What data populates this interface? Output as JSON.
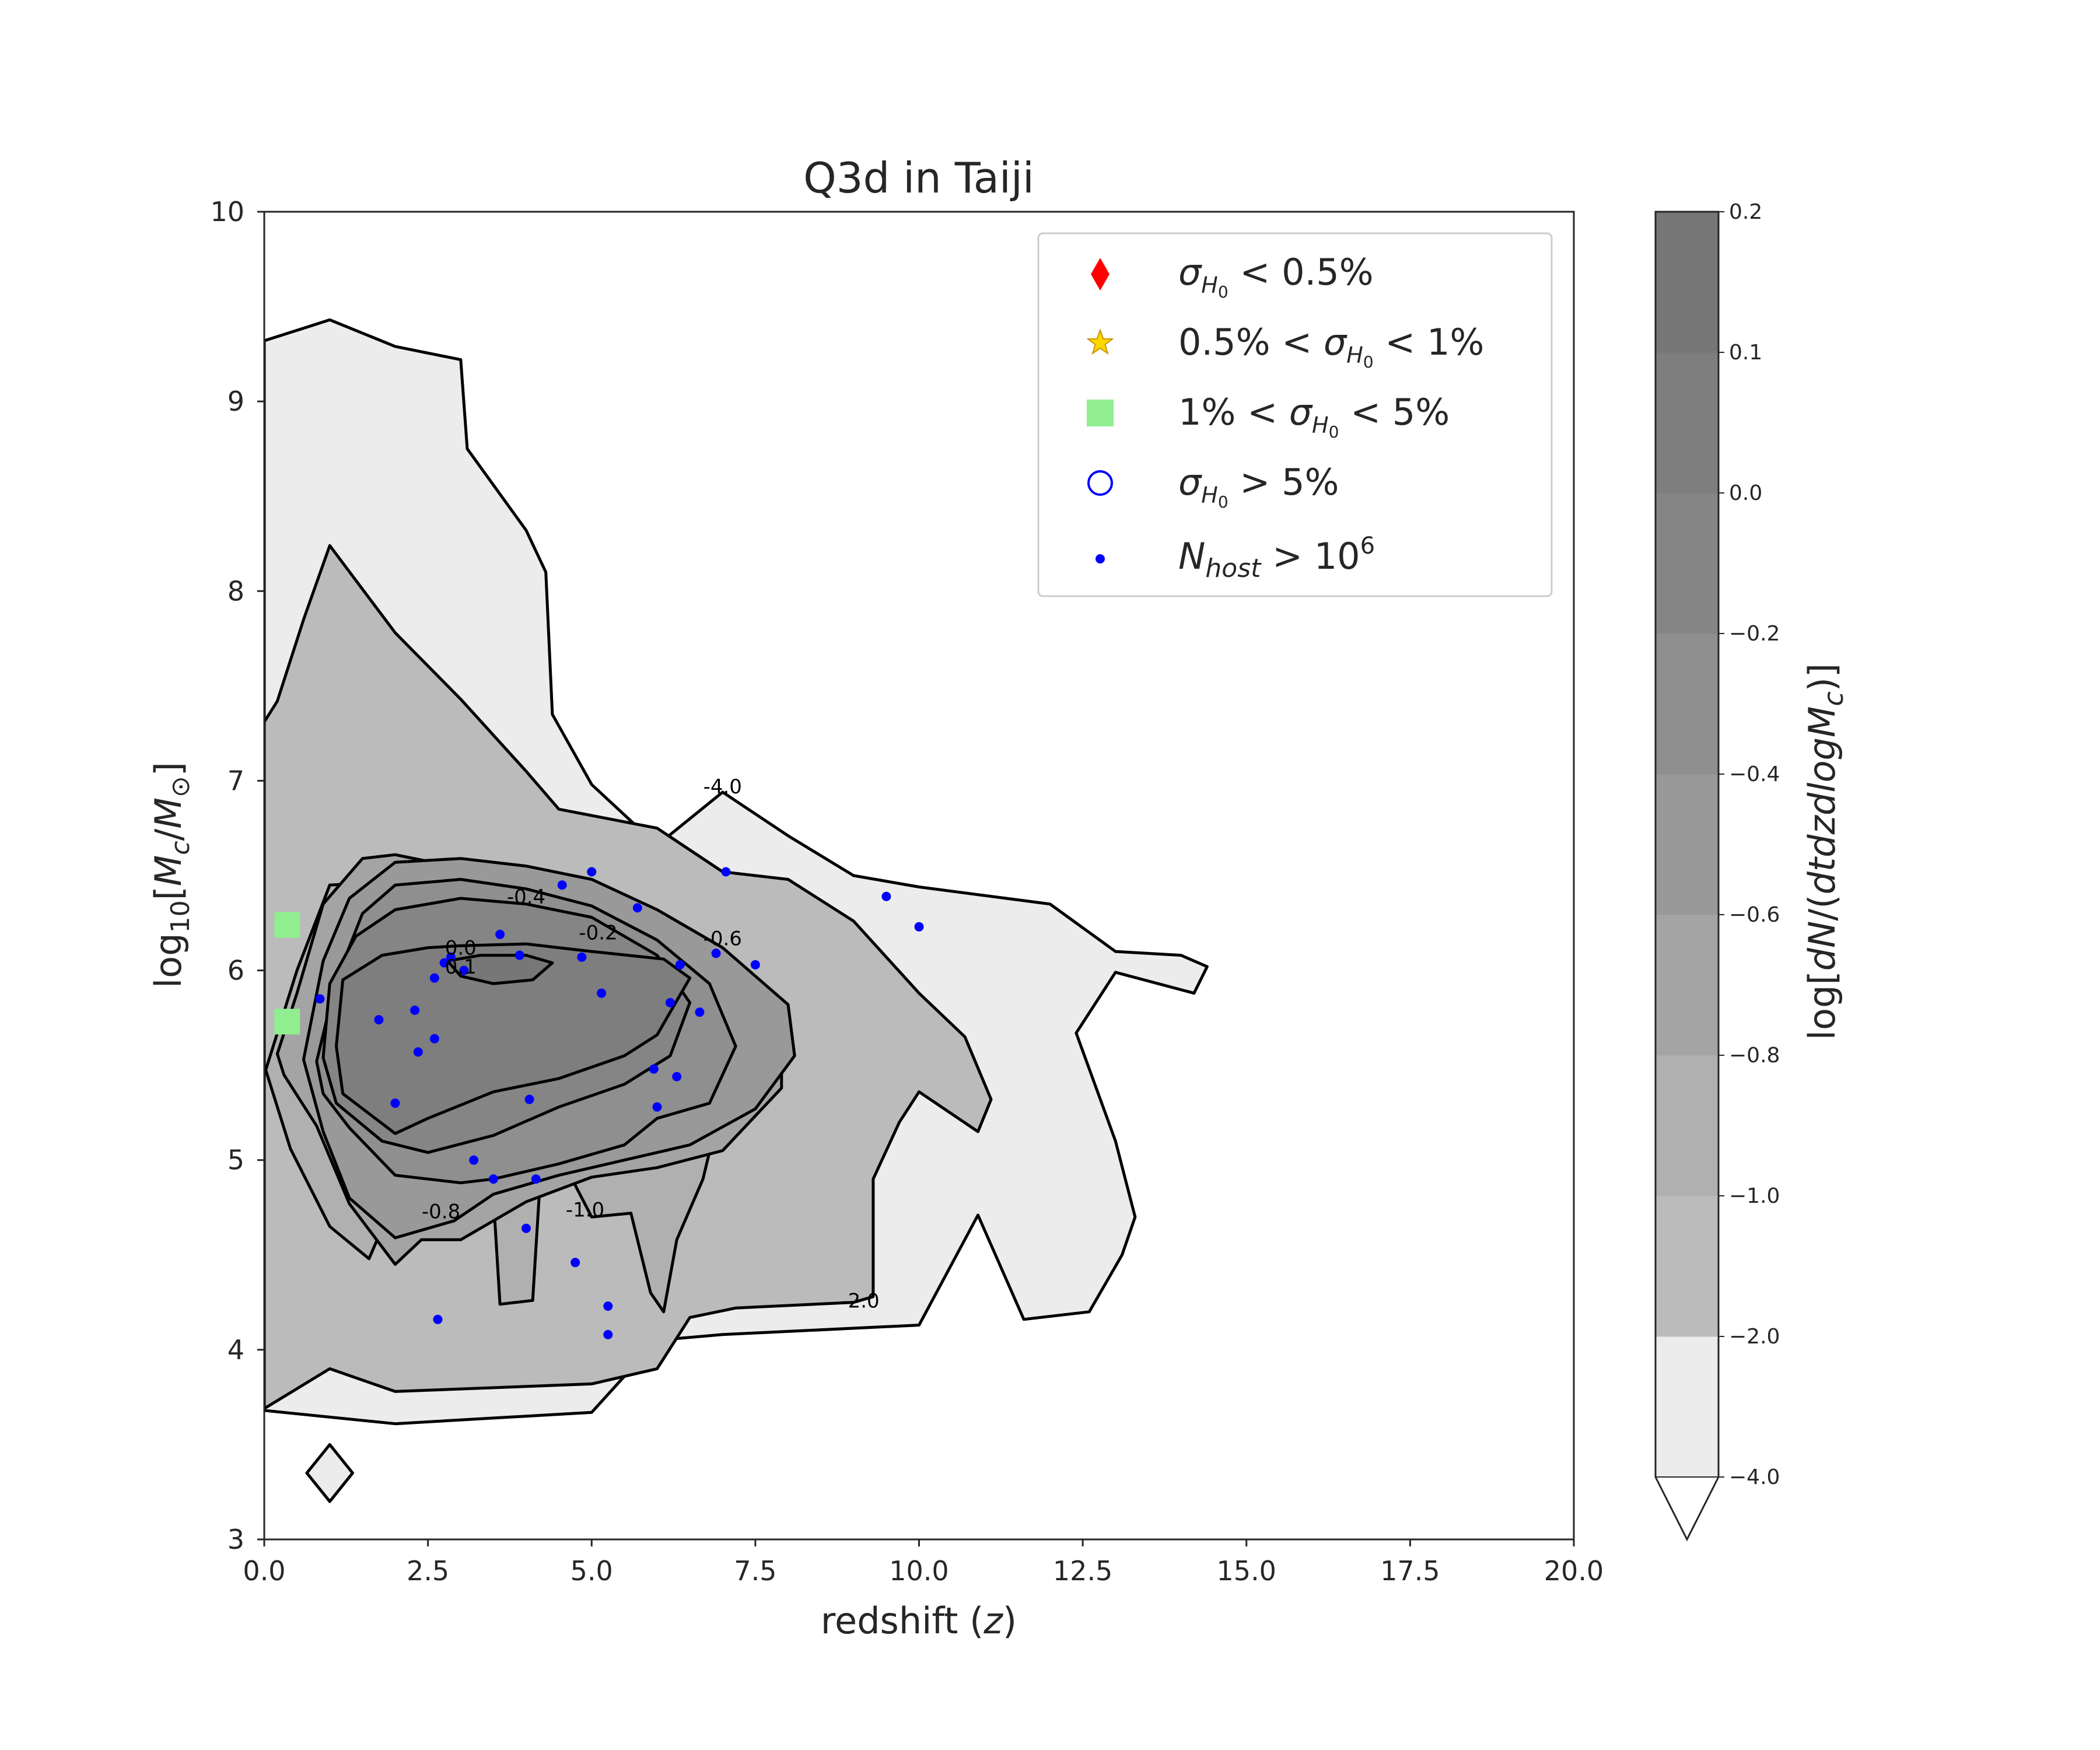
{
  "chart_data": {
    "type": "contour",
    "title": "Q3d in Taiji",
    "xlabel": "redshift (z)",
    "ylabel": "log10[Mc/M☉]",
    "xlim": [
      0,
      20
    ],
    "ylim": [
      3,
      10
    ],
    "xticks": [
      "0.0",
      "2.5",
      "5.0",
      "7.5",
      "10.0",
      "12.5",
      "15.0",
      "17.5",
      "20.0"
    ],
    "yticks": [
      "3",
      "4",
      "5",
      "6",
      "7",
      "8",
      "9",
      "10"
    ],
    "grid": false,
    "legend_position": "top-right",
    "legend": [
      {
        "marker": "red-diamond",
        "label": "σH0 < 0.5%"
      },
      {
        "marker": "gold-star",
        "label": "0.5% < σH0 < 1%"
      },
      {
        "marker": "green-square",
        "label": "1% < σH0 < 5%"
      },
      {
        "marker": "blue-open-circle",
        "label": "σH0 > 5%"
      },
      {
        "marker": "blue-dot",
        "label": "Nhost > 10^6"
      }
    ],
    "colorbar": {
      "label": "log[dN/(dtdzdlogMc)]",
      "levels": [
        -4.0,
        -2.0,
        -1.0,
        -0.8,
        -0.6,
        -0.4,
        -0.2,
        0.0,
        0.1,
        0.2
      ],
      "tick_labels": [
        "−4.0",
        "−2.0",
        "−1.0",
        "−0.8",
        "−0.6",
        "−0.4",
        "−0.2",
        "0.0",
        "0.1",
        "0.2"
      ],
      "colors": [
        "#ececec",
        "#bbbbbb",
        "#b0b0b0",
        "#a4a4a4",
        "#999999",
        "#8f8f8f",
        "#858585",
        "#7e7e7e",
        "#777777"
      ],
      "extend": "min"
    },
    "contour_labels": [
      {
        "text": "-4.0",
        "x": 7.0,
        "y": 6.97
      },
      {
        "text": "-2.0",
        "x": 9.1,
        "y": 4.26
      },
      {
        "text": "-1.0",
        "x": 4.9,
        "y": 4.74
      },
      {
        "text": "-0.8",
        "x": 2.7,
        "y": 4.73
      },
      {
        "text": "-0.6",
        "x": 7.0,
        "y": 6.17
      },
      {
        "text": "-0.4",
        "x": 4.0,
        "y": 6.39
      },
      {
        "text": "-0.2",
        "x": 5.1,
        "y": 6.2
      },
      {
        "text": "0.0",
        "x": 3.0,
        "y": 6.12
      },
      {
        "text": "0.1",
        "x": 3.0,
        "y": 6.02
      }
    ],
    "contours": [
      {
        "level": -4.0,
        "fill": "#ececec",
        "points": [
          [
            0,
            9.32
          ],
          [
            1,
            9.43
          ],
          [
            2,
            9.29
          ],
          [
            3,
            9.22
          ],
          [
            3.1,
            8.75
          ],
          [
            4,
            8.32
          ],
          [
            4.3,
            8.1
          ],
          [
            4.4,
            7.35
          ],
          [
            5,
            6.98
          ],
          [
            6,
            6.66
          ],
          [
            7,
            6.94
          ],
          [
            8,
            6.71
          ],
          [
            9,
            6.5
          ],
          [
            10,
            6.44
          ],
          [
            12,
            6.35
          ],
          [
            13,
            6.1
          ],
          [
            14,
            6.08
          ],
          [
            14.4,
            6.02
          ],
          [
            14.2,
            5.88
          ],
          [
            13,
            5.99
          ],
          [
            12.4,
            5.67
          ],
          [
            13,
            5.1
          ],
          [
            13.3,
            4.7
          ],
          [
            13.1,
            4.5
          ],
          [
            12.6,
            4.2
          ],
          [
            11.6,
            4.16
          ],
          [
            10.9,
            4.71
          ],
          [
            10,
            4.13
          ],
          [
            7,
            4.08
          ],
          [
            6,
            4.05
          ],
          [
            5,
            3.67
          ],
          [
            2,
            3.61
          ],
          [
            0,
            3.68
          ]
        ]
      },
      {
        "level": -2.0,
        "fill": "#bbbbbb",
        "points": [
          [
            0,
            7.31
          ],
          [
            0.2,
            7.42
          ],
          [
            0.6,
            7.85
          ],
          [
            1,
            8.24
          ],
          [
            2,
            7.78
          ],
          [
            3,
            7.43
          ],
          [
            4,
            7.05
          ],
          [
            4.5,
            6.85
          ],
          [
            6,
            6.75
          ],
          [
            7,
            6.52
          ],
          [
            8,
            6.48
          ],
          [
            9,
            6.26
          ],
          [
            10,
            5.88
          ],
          [
            10.7,
            5.65
          ],
          [
            11.1,
            5.32
          ],
          [
            10.9,
            5.15
          ],
          [
            10,
            5.36
          ],
          [
            9.7,
            5.2
          ],
          [
            9.3,
            4.9
          ],
          [
            9.3,
            4.28
          ],
          [
            9,
            4.25
          ],
          [
            7.2,
            4.22
          ],
          [
            6.5,
            4.17
          ],
          [
            6,
            3.9
          ],
          [
            5,
            3.82
          ],
          [
            2,
            3.78
          ],
          [
            1,
            3.9
          ],
          [
            0,
            3.69
          ]
        ]
      },
      {
        "level": -1.0,
        "fill": "#b0b0b0",
        "points": [
          [
            0,
            5.45
          ],
          [
            0.5,
            6.0
          ],
          [
            1,
            6.45
          ],
          [
            2,
            6.47
          ],
          [
            3,
            6.4
          ],
          [
            4,
            6.3
          ],
          [
            5,
            6.14
          ],
          [
            6,
            6.0
          ],
          [
            6.8,
            5.75
          ],
          [
            7,
            5.33
          ],
          [
            6.7,
            4.9
          ],
          [
            6.3,
            4.58
          ],
          [
            6.1,
            4.2
          ],
          [
            5.9,
            4.3
          ],
          [
            5.6,
            4.72
          ],
          [
            5,
            4.7
          ],
          [
            4.7,
            4.9
          ],
          [
            4.2,
            4.82
          ],
          [
            4.1,
            4.26
          ],
          [
            3.6,
            4.24
          ],
          [
            3.5,
            4.8
          ],
          [
            3,
            4.85
          ],
          [
            2,
            4.8
          ],
          [
            1.6,
            4.48
          ],
          [
            1,
            4.65
          ],
          [
            0.4,
            5.06
          ],
          [
            0,
            5.5
          ]
        ]
      },
      {
        "level": -0.8,
        "fill": "#a4a4a4",
        "points": [
          [
            0.2,
            5.56
          ],
          [
            0.5,
            5.88
          ],
          [
            0.9,
            6.35
          ],
          [
            1.5,
            6.59
          ],
          [
            2,
            6.61
          ],
          [
            3,
            6.54
          ],
          [
            4,
            6.49
          ],
          [
            5,
            6.44
          ],
          [
            6,
            6.3
          ],
          [
            6.8,
            6.08
          ],
          [
            7.5,
            5.91
          ],
          [
            7.9,
            5.65
          ],
          [
            7.9,
            5.38
          ],
          [
            7,
            5.05
          ],
          [
            6,
            4.96
          ],
          [
            5,
            4.91
          ],
          [
            4,
            4.78
          ],
          [
            3,
            4.58
          ],
          [
            2.4,
            4.58
          ],
          [
            2,
            4.45
          ],
          [
            1.3,
            4.77
          ],
          [
            0.8,
            5.18
          ],
          [
            0.3,
            5.45
          ]
        ]
      },
      {
        "level": -0.6,
        "fill": "#999999",
        "points": [
          [
            0.6,
            5.53
          ],
          [
            0.9,
            6.05
          ],
          [
            1.3,
            6.38
          ],
          [
            2,
            6.57
          ],
          [
            3,
            6.59
          ],
          [
            4,
            6.55
          ],
          [
            5,
            6.48
          ],
          [
            6,
            6.32
          ],
          [
            7,
            6.12
          ],
          [
            8,
            5.82
          ],
          [
            8.1,
            5.55
          ],
          [
            7.5,
            5.27
          ],
          [
            6.5,
            5.08
          ],
          [
            5.5,
            5.0
          ],
          [
            4.5,
            4.92
          ],
          [
            3.5,
            4.82
          ],
          [
            2.9,
            4.68
          ],
          [
            2,
            4.59
          ],
          [
            1.3,
            4.8
          ],
          [
            0.9,
            5.15
          ]
        ]
      },
      {
        "level": -0.4,
        "fill": "#8f8f8f",
        "points": [
          [
            0.8,
            5.52
          ],
          [
            1.1,
            5.95
          ],
          [
            1.5,
            6.3
          ],
          [
            2,
            6.45
          ],
          [
            3,
            6.48
          ],
          [
            4,
            6.43
          ],
          [
            5,
            6.34
          ],
          [
            6,
            6.16
          ],
          [
            6.8,
            5.93
          ],
          [
            7.2,
            5.6
          ],
          [
            6.8,
            5.3
          ],
          [
            6,
            5.22
          ],
          [
            5.5,
            5.08
          ],
          [
            4.5,
            4.98
          ],
          [
            3.5,
            4.9
          ],
          [
            3,
            4.88
          ],
          [
            2,
            4.92
          ],
          [
            1.3,
            5.17
          ],
          [
            0.9,
            5.35
          ]
        ]
      },
      {
        "level": -0.2,
        "fill": "#858585",
        "points": [
          [
            0.9,
            5.54
          ],
          [
            1,
            5.93
          ],
          [
            1.4,
            6.18
          ],
          [
            2,
            6.32
          ],
          [
            3,
            6.38
          ],
          [
            4,
            6.35
          ],
          [
            5,
            6.28
          ],
          [
            6,
            6.08
          ],
          [
            6.5,
            5.83
          ],
          [
            6.2,
            5.55
          ],
          [
            5.5,
            5.4
          ],
          [
            4.5,
            5.28
          ],
          [
            3.5,
            5.13
          ],
          [
            2.5,
            5.04
          ],
          [
            1.8,
            5.1
          ],
          [
            1.1,
            5.3
          ]
        ]
      },
      {
        "level": 0.0,
        "fill": "#7e7e7e",
        "points": [
          [
            1.1,
            5.6
          ],
          [
            1.2,
            5.95
          ],
          [
            1.8,
            6.08
          ],
          [
            2.5,
            6.12
          ],
          [
            3,
            6.13
          ],
          [
            4,
            6.14
          ],
          [
            5,
            6.1
          ],
          [
            6.1,
            6.06
          ],
          [
            6.5,
            5.96
          ],
          [
            6,
            5.66
          ],
          [
            5.5,
            5.55
          ],
          [
            4.5,
            5.43
          ],
          [
            3.5,
            5.36
          ],
          [
            2.5,
            5.22
          ],
          [
            2,
            5.14
          ],
          [
            1.2,
            5.35
          ]
        ]
      },
      {
        "level": 0.1,
        "fill": "#777777",
        "points": [
          [
            2.8,
            6.05
          ],
          [
            3.3,
            6.08
          ],
          [
            4,
            6.08
          ],
          [
            4.4,
            6.04
          ],
          [
            4.1,
            5.95
          ],
          [
            3.5,
            5.93
          ],
          [
            3,
            5.97
          ]
        ]
      }
    ],
    "isolated_contour": {
      "level": -4.0,
      "fill": "#ececec",
      "points": [
        [
          1,
          3.5
        ],
        [
          1.35,
          3.35
        ],
        [
          1,
          3.2
        ],
        [
          0.65,
          3.35
        ]
      ]
    },
    "series": [
      {
        "name": "Nhost > 10^6",
        "marker": "blue-dot",
        "x": [
          0.85,
          1.75,
          2.0,
          2.3,
          2.6,
          2.35,
          2.6,
          2.75,
          3.05,
          2.65,
          2.85,
          3.2,
          3.5,
          3.6,
          3.9,
          4.05,
          4.15,
          4.0,
          4.55,
          4.75,
          5.0,
          4.85,
          5.15,
          5.25,
          5.25,
          5.7,
          5.95,
          6.0,
          6.3,
          6.35,
          6.2,
          6.65,
          6.9,
          7.05,
          7.5,
          9.5,
          10.0
        ],
        "y": [
          5.85,
          5.74,
          5.3,
          5.79,
          5.64,
          5.57,
          5.96,
          6.04,
          6.0,
          4.16,
          6.07,
          5.0,
          4.9,
          6.19,
          6.08,
          5.32,
          4.9,
          4.64,
          6.45,
          4.46,
          6.52,
          6.07,
          5.88,
          4.23,
          4.08,
          6.33,
          5.48,
          5.28,
          5.44,
          6.03,
          5.83,
          5.78,
          6.09,
          6.52,
          6.03,
          6.39,
          6.23
        ]
      },
      {
        "name": "1% < σH0 < 5%",
        "marker": "green-square",
        "x": [
          0.35,
          0.35
        ],
        "y": [
          6.24,
          5.73
        ]
      }
    ]
  }
}
